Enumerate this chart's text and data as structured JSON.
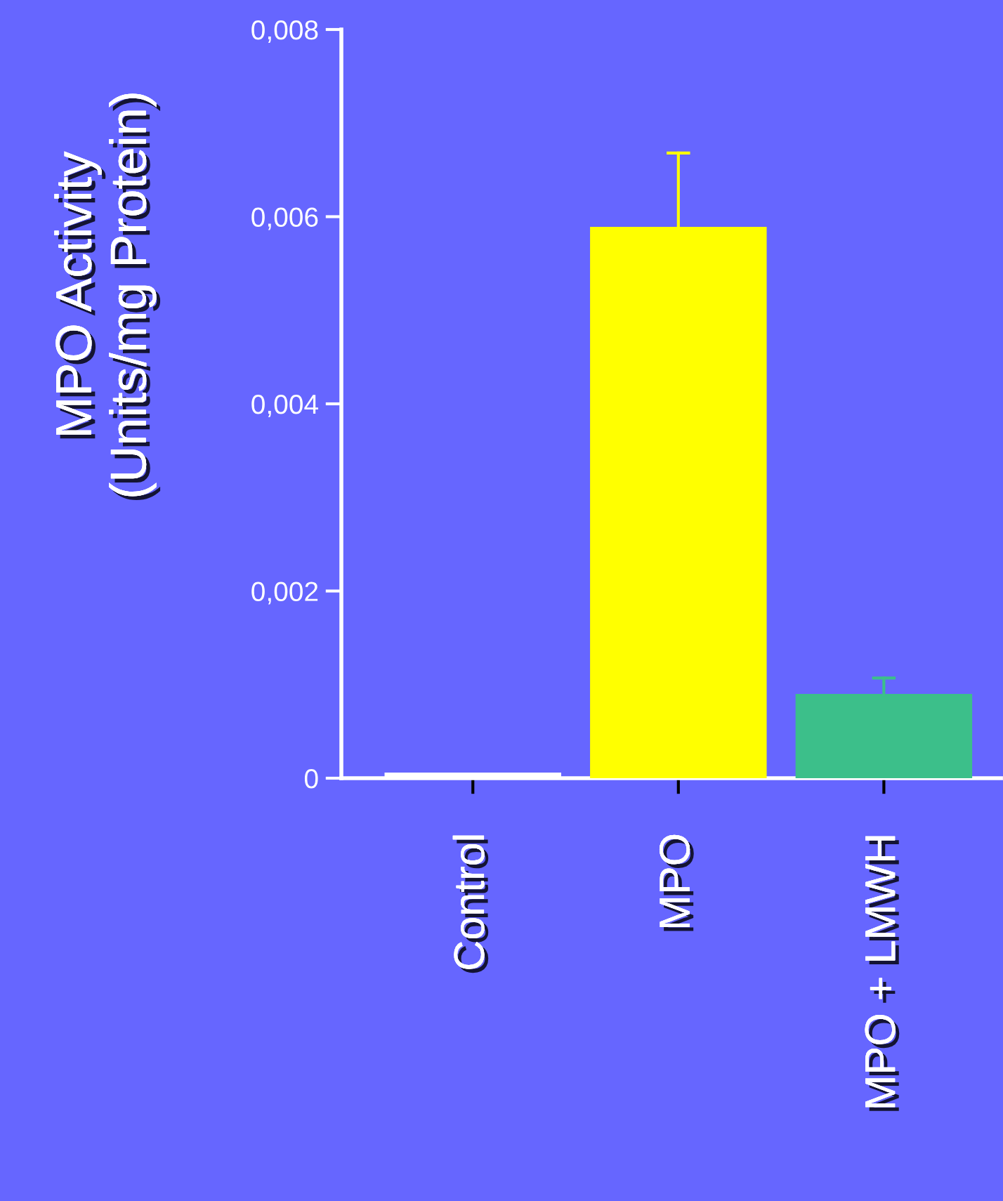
{
  "chart_data": {
    "type": "bar",
    "ylabel": "MPO Activity\n(Units/mg Protein)",
    "categories": [
      "Control",
      "MPO",
      "MPO + LMWH"
    ],
    "values": [
      5e-05,
      0.00588,
      0.00089
    ],
    "colors": [
      "#ffffff",
      "#ffff00",
      "#3cbf8a"
    ],
    "errors": [
      null,
      [
        0.00588,
        0.00668
      ],
      [
        0.00089,
        0.00107
      ]
    ],
    "ylim": [
      0,
      0.008
    ],
    "yticks": [
      0,
      {
        "value": 0.002,
        "label": "0,002"
      },
      {
        "value": 0.004,
        "label": "0,004"
      },
      {
        "value": 0.006,
        "label": "0,006"
      },
      {
        "value": 0.008,
        "label": "0,008"
      }
    ],
    "grid": false,
    "legend": false
  }
}
